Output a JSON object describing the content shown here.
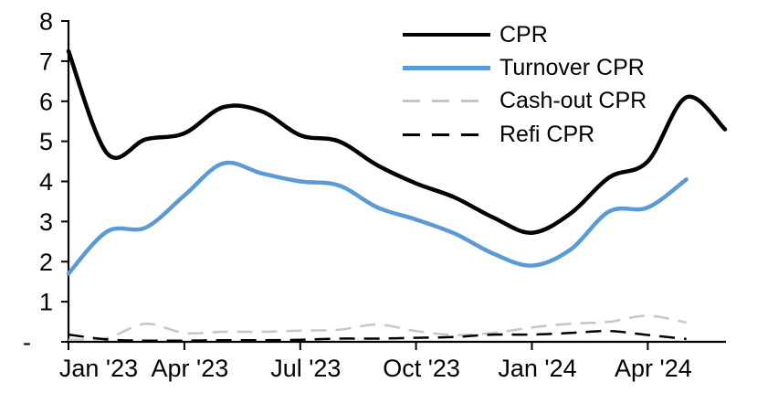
{
  "chart_data": {
    "type": "line",
    "title": "",
    "xlabel": "",
    "ylabel": "",
    "grid": false,
    "legend_position": "top-right-inside",
    "categories": [
      "Jan '23",
      "Feb '23",
      "Mar '23",
      "Apr '23",
      "May '23",
      "Jun '23",
      "Jul '23",
      "Aug '23",
      "Sep '23",
      "Oct '23",
      "Nov '23",
      "Dec '23",
      "Jan '24",
      "Feb '24",
      "Mar '24",
      "Apr '24",
      "May '24",
      "Jun '24"
    ],
    "xtick_indices": [
      0,
      3,
      6,
      9,
      12,
      15
    ],
    "ylim": [
      0,
      8
    ],
    "ytick_labels": [
      "-",
      "1",
      "2",
      "3",
      "4",
      "5",
      "6",
      "7",
      "8"
    ],
    "series": [
      {
        "name": "CPR",
        "color": "#000000",
        "style": "solid",
        "width": 4.5,
        "values": [
          7.25,
          4.7,
          5.05,
          5.2,
          5.85,
          5.75,
          5.15,
          5.0,
          4.4,
          3.95,
          3.6,
          3.1,
          2.72,
          3.2,
          4.1,
          4.5,
          6.1,
          5.3
        ]
      },
      {
        "name": "Turnover CPR",
        "color": "#5B9BD5",
        "style": "solid",
        "width": 4.5,
        "values": [
          1.7,
          2.75,
          2.85,
          3.65,
          4.45,
          4.2,
          4.0,
          3.9,
          3.35,
          3.05,
          2.7,
          2.2,
          1.9,
          2.3,
          3.25,
          3.35,
          4.05,
          null
        ]
      },
      {
        "name": "Cash-out CPR",
        "color": "#C6C6C6",
        "style": "dashed",
        "width": 2.5,
        "values": [
          0.05,
          0.1,
          0.45,
          0.22,
          0.25,
          0.25,
          0.28,
          0.3,
          0.43,
          0.27,
          0.17,
          0.22,
          0.36,
          0.45,
          0.5,
          0.65,
          0.48,
          null
        ]
      },
      {
        "name": "Refi CPR",
        "color": "#000000",
        "style": "dashed",
        "width": 2.5,
        "values": [
          0.18,
          0.06,
          0.03,
          0.03,
          0.04,
          0.04,
          0.05,
          0.08,
          0.08,
          0.1,
          0.12,
          0.18,
          0.18,
          0.22,
          0.27,
          0.17,
          0.07,
          null
        ]
      }
    ]
  },
  "colors": {
    "background": "#FFFFFF",
    "axis": "#000000",
    "text": "#000000"
  }
}
